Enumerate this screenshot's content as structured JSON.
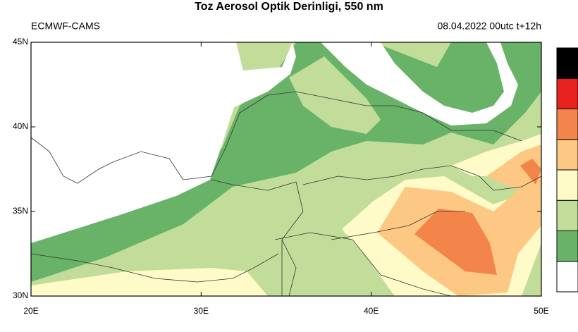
{
  "header": {
    "title": "Toz Aerosol Optik Derinligi, 550 nm",
    "source": "ECMWF-CAMS",
    "valid_time": "08.04.2022 00utc t+12h"
  },
  "map": {
    "xlim": [
      20,
      50
    ],
    "ylim": [
      30,
      45
    ],
    "xticks": [
      {
        "value": 20,
        "label": "20E"
      },
      {
        "value": 30,
        "label": "30E"
      },
      {
        "value": 40,
        "label": "40E"
      },
      {
        "value": 50,
        "label": "50E"
      }
    ],
    "yticks": [
      {
        "value": 30,
        "label": "30N"
      },
      {
        "value": 35,
        "label": "35N"
      },
      {
        "value": 40,
        "label": "40N"
      },
      {
        "value": 45,
        "label": "45N"
      }
    ],
    "colorbar": [
      "#ffffff",
      "#68b368",
      "#c2dd9a",
      "#fffbc8",
      "#fdc883",
      "#f4854a",
      "#e8231f",
      "#000000"
    ]
  }
}
